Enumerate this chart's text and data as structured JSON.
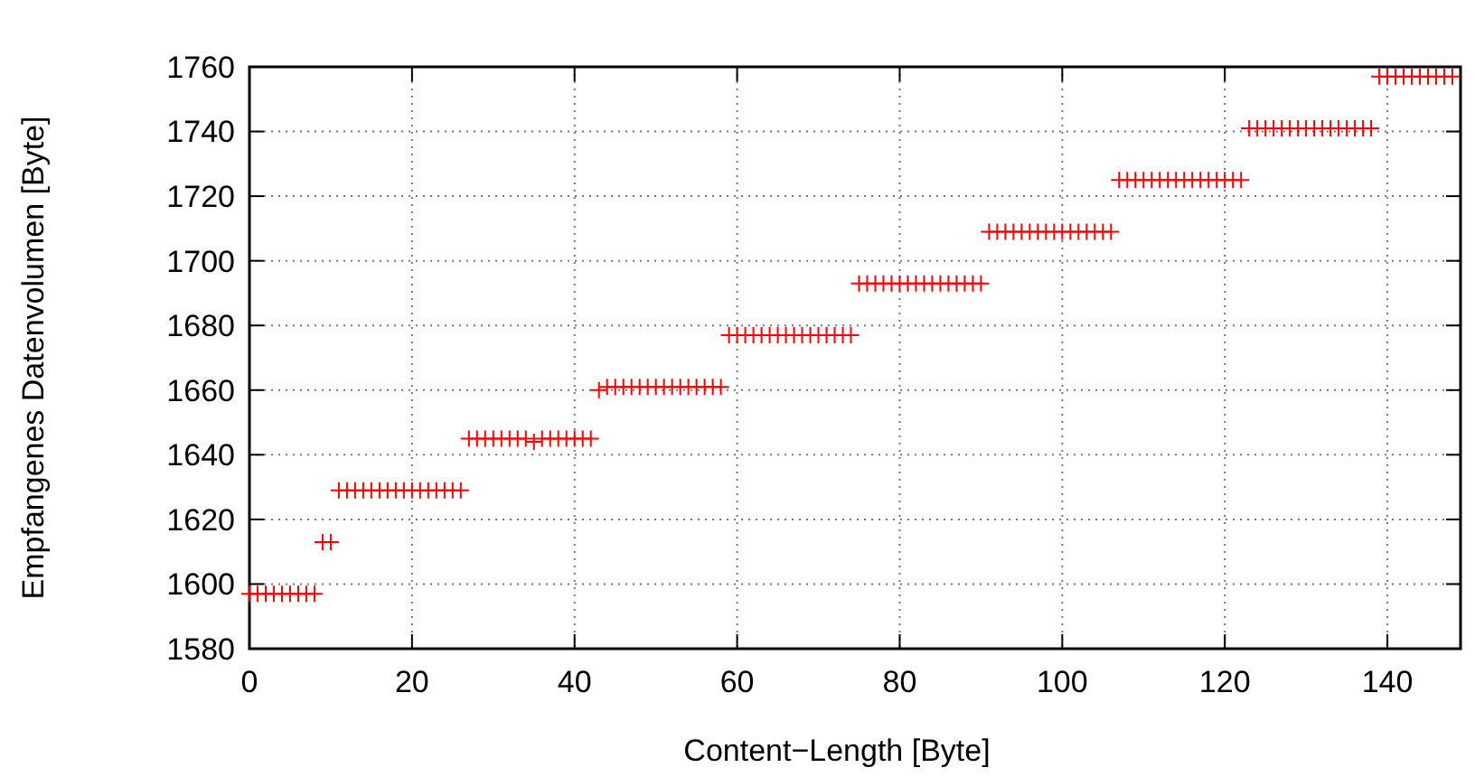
{
  "chart_data": {
    "type": "scatter",
    "xlabel": "Content−Length [Byte]",
    "ylabel": "Empfangenes Datenvolumen [Byte]",
    "xlim": [
      0,
      149
    ],
    "xticks": [
      0,
      20,
      40,
      60,
      80,
      100,
      120,
      140
    ],
    "ylim": [
      1580,
      1760
    ],
    "yticks": [
      1580,
      1600,
      1620,
      1640,
      1660,
      1680,
      1700,
      1720,
      1740,
      1760
    ],
    "grid": true,
    "marker": "cross",
    "series": [
      {
        "color": "#ff0000",
        "x": [
          0,
          1,
          2,
          3,
          4,
          5,
          6,
          7,
          8,
          9,
          10,
          11,
          12,
          13,
          14,
          15,
          16,
          17,
          18,
          19,
          20,
          21,
          22,
          23,
          24,
          25,
          26,
          27,
          28,
          29,
          30,
          31,
          32,
          33,
          34,
          35,
          36,
          37,
          38,
          39,
          40,
          41,
          42,
          43,
          44,
          45,
          46,
          47,
          48,
          49,
          50,
          51,
          52,
          53,
          54,
          55,
          56,
          57,
          58,
          59,
          60,
          61,
          62,
          63,
          64,
          65,
          66,
          67,
          68,
          69,
          70,
          71,
          72,
          73,
          74,
          75,
          76,
          77,
          78,
          79,
          80,
          81,
          82,
          83,
          84,
          85,
          86,
          87,
          88,
          89,
          90,
          91,
          92,
          93,
          94,
          95,
          96,
          97,
          98,
          99,
          100,
          101,
          102,
          103,
          104,
          105,
          106,
          107,
          108,
          109,
          110,
          111,
          112,
          113,
          114,
          115,
          116,
          117,
          118,
          119,
          120,
          121,
          122,
          123,
          124,
          125,
          126,
          127,
          128,
          129,
          130,
          131,
          132,
          133,
          134,
          135,
          136,
          137,
          138,
          139,
          140,
          141,
          142,
          143,
          144,
          145,
          146,
          147,
          148
        ],
        "values": [
          1597,
          1597,
          1597,
          1597,
          1597,
          1597,
          1597,
          1597,
          1597,
          1613,
          1613,
          1629,
          1629,
          1629,
          1629,
          1629,
          1629,
          1629,
          1629,
          1629,
          1629,
          1629,
          1629,
          1629,
          1629,
          1629,
          1629,
          1645,
          1645,
          1645,
          1645,
          1645,
          1645,
          1645,
          1645,
          1644,
          1645,
          1645,
          1645,
          1645,
          1645,
          1645,
          1645,
          1660,
          1661,
          1661,
          1661,
          1661,
          1661,
          1661,
          1661,
          1661,
          1661,
          1661,
          1661,
          1661,
          1661,
          1661,
          1661,
          1677,
          1677,
          1677,
          1677,
          1677,
          1677,
          1677,
          1677,
          1677,
          1677,
          1677,
          1677,
          1677,
          1677,
          1677,
          1677,
          1693,
          1693,
          1693,
          1693,
          1693,
          1693,
          1693,
          1693,
          1693,
          1693,
          1693,
          1693,
          1693,
          1693,
          1693,
          1693,
          1709,
          1709,
          1709,
          1709,
          1709,
          1709,
          1709,
          1709,
          1709,
          1709,
          1709,
          1709,
          1709,
          1709,
          1709,
          1709,
          1725,
          1725,
          1725,
          1725,
          1725,
          1725,
          1725,
          1725,
          1725,
          1725,
          1725,
          1725,
          1725,
          1725,
          1725,
          1725,
          1741,
          1741,
          1741,
          1741,
          1741,
          1741,
          1741,
          1741,
          1741,
          1741,
          1741,
          1741,
          1741,
          1741,
          1741,
          1741,
          1757,
          1757,
          1757,
          1757,
          1757,
          1757,
          1757,
          1757,
          1757,
          1757
        ]
      }
    ]
  }
}
